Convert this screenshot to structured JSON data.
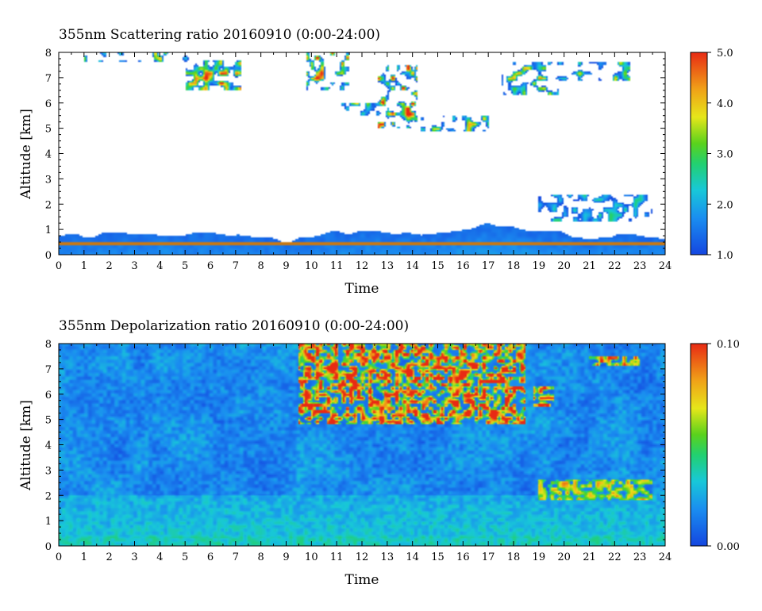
{
  "chart_data": [
    {
      "type": "heatmap",
      "title": "355nm Scattering ratio  20160910 (0:00-24:00)",
      "xlabel": "Time",
      "ylabel": "Altitude [km]",
      "xlim": [
        0,
        24
      ],
      "ylim": [
        0,
        8
      ],
      "xticks": [
        "0",
        "1",
        "2",
        "3",
        "4",
        "5",
        "6",
        "7",
        "8",
        "9",
        "10",
        "11",
        "12",
        "13",
        "14",
        "15",
        "16",
        "17",
        "18",
        "19",
        "20",
        "21",
        "22",
        "23",
        "24"
      ],
      "yticks": [
        "0",
        "1",
        "2",
        "3",
        "4",
        "5",
        "6",
        "7",
        "8"
      ],
      "colorbar": {
        "min": 1.0,
        "max": 5.0,
        "labels": [
          "1.0",
          "2.0",
          "3.0",
          "4.0",
          "5.0"
        ]
      },
      "boundary_layer_top_km": [
        [
          0,
          0.75
        ],
        [
          1,
          0.72
        ],
        [
          2,
          0.78
        ],
        [
          3,
          0.8
        ],
        [
          4,
          0.82
        ],
        [
          5,
          0.8
        ],
        [
          6,
          0.75
        ],
        [
          7,
          0.7
        ],
        [
          8,
          0.65
        ],
        [
          9,
          0.55
        ],
        [
          10,
          0.65
        ],
        [
          11,
          0.95
        ],
        [
          12,
          0.85
        ],
        [
          13,
          0.85
        ],
        [
          14,
          0.8
        ],
        [
          15,
          0.9
        ],
        [
          16,
          1.0
        ],
        [
          17,
          1.25
        ],
        [
          18,
          1.15
        ],
        [
          19,
          0.95
        ],
        [
          20,
          0.8
        ],
        [
          21,
          0.75
        ],
        [
          22,
          0.75
        ],
        [
          23,
          0.7
        ],
        [
          24,
          0.65
        ]
      ],
      "cloud_layers": [
        {
          "start_h": 1.0,
          "end_h": 5.2,
          "base_km": 7.6,
          "top_km": 8.0,
          "peak": 3.5
        },
        {
          "start_h": 5.0,
          "end_h": 7.2,
          "base_km": 6.5,
          "top_km": 7.7,
          "peak": 4.5
        },
        {
          "start_h": 9.8,
          "end_h": 11.5,
          "base_km": 6.5,
          "top_km": 8.0,
          "peak": 5.0
        },
        {
          "start_h": 11.2,
          "end_h": 12.8,
          "base_km": 5.3,
          "top_km": 6.0,
          "peak": 3.5
        },
        {
          "start_h": 12.6,
          "end_h": 14.2,
          "base_km": 5.0,
          "top_km": 7.5,
          "peak": 5.0
        },
        {
          "start_h": 14.3,
          "end_h": 17.0,
          "base_km": 4.9,
          "top_km": 5.5,
          "peak": 3.5
        },
        {
          "start_h": 17.5,
          "end_h": 19.8,
          "base_km": 6.3,
          "top_km": 7.6,
          "peak": 4.0
        },
        {
          "start_h": 19.8,
          "end_h": 22.6,
          "base_km": 6.9,
          "top_km": 7.6,
          "peak": 3.5
        },
        {
          "start_h": 19.0,
          "end_h": 23.5,
          "base_km": 1.3,
          "top_km": 2.4,
          "peak": 2.5
        }
      ]
    },
    {
      "type": "heatmap",
      "title": "355nm Depolarization ratio  20160910 (0:00-24:00)",
      "xlabel": "Time",
      "ylabel": "Altitude [km]",
      "xlim": [
        0,
        24
      ],
      "ylim": [
        0,
        8
      ],
      "xticks": [
        "0",
        "1",
        "2",
        "3",
        "4",
        "5",
        "6",
        "7",
        "8",
        "9",
        "10",
        "11",
        "12",
        "13",
        "14",
        "15",
        "16",
        "17",
        "18",
        "19",
        "20",
        "21",
        "22",
        "23",
        "24"
      ],
      "yticks": [
        "0",
        "1",
        "2",
        "3",
        "4",
        "5",
        "6",
        "7",
        "8"
      ],
      "colorbar": {
        "min": 0.0,
        "max": 0.1,
        "labels": [
          "0.00",
          "0.10"
        ]
      },
      "high_depolarization_regions": [
        {
          "start_h": 9.5,
          "end_h": 18.5,
          "base_km": 4.8,
          "top_km": 8.0,
          "peak": 0.1
        },
        {
          "start_h": 18.8,
          "end_h": 19.6,
          "base_km": 5.5,
          "top_km": 6.3,
          "peak": 0.09
        },
        {
          "start_h": 21.0,
          "end_h": 23.0,
          "base_km": 7.1,
          "top_km": 7.5,
          "peak": 0.08
        },
        {
          "start_h": 19.0,
          "end_h": 23.5,
          "base_km": 1.8,
          "top_km": 2.6,
          "peak": 0.05
        }
      ]
    }
  ]
}
